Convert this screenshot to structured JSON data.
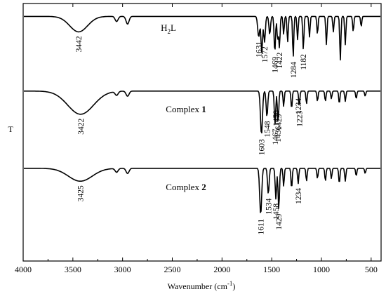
{
  "chart_data": {
    "type": "line",
    "title": "",
    "xlabel": "Wavenumber (cm",
    "xlabel_sup": "-1",
    "xlabel_close": ")",
    "ylabel": "T",
    "xlim": [
      4000,
      400
    ],
    "x_reversed": true,
    "x_ticks": [
      4000,
      3500,
      3000,
      2500,
      2000,
      1500,
      1000,
      500
    ],
    "grid": false,
    "series": [
      {
        "name": "H2L",
        "name_parts": [
          "H",
          "2",
          "L"
        ],
        "baseline": 0.05,
        "features": [
          {
            "x": 3442,
            "depth": 0.06,
            "width": 90
          },
          {
            "x": 3060,
            "depth": 0.02,
            "width": 15
          },
          {
            "x": 2950,
            "depth": 0.03,
            "width": 15
          },
          {
            "x": 1631,
            "depth": 0.08,
            "width": 10
          },
          {
            "x": 1600,
            "depth": 0.14,
            "width": 8
          },
          {
            "x": 1572,
            "depth": 0.1,
            "width": 8
          },
          {
            "x": 1520,
            "depth": 0.07,
            "width": 8
          },
          {
            "x": 1469,
            "depth": 0.14,
            "width": 7
          },
          {
            "x": 1440,
            "depth": 0.09,
            "width": 7
          },
          {
            "x": 1422,
            "depth": 0.12,
            "width": 6
          },
          {
            "x": 1380,
            "depth": 0.07,
            "width": 6
          },
          {
            "x": 1340,
            "depth": 0.1,
            "width": 6
          },
          {
            "x": 1284,
            "depth": 0.16,
            "width": 6
          },
          {
            "x": 1240,
            "depth": 0.09,
            "width": 6
          },
          {
            "x": 1182,
            "depth": 0.13,
            "width": 6
          },
          {
            "x": 1120,
            "depth": 0.08,
            "width": 6
          },
          {
            "x": 1040,
            "depth": 0.07,
            "width": 6
          },
          {
            "x": 950,
            "depth": 0.11,
            "width": 6
          },
          {
            "x": 880,
            "depth": 0.06,
            "width": 6
          },
          {
            "x": 810,
            "depth": 0.17,
            "width": 6
          },
          {
            "x": 760,
            "depth": 0.11,
            "width": 6
          },
          {
            "x": 680,
            "depth": 0.06,
            "width": 6
          },
          {
            "x": 600,
            "depth": 0.04,
            "width": 6
          }
        ],
        "annotations": [
          {
            "x": 3442,
            "label": "3442"
          },
          {
            "x": 1631,
            "label": "1631"
          },
          {
            "x": 1572,
            "label": "1572"
          },
          {
            "x": 1469,
            "label": "1469"
          },
          {
            "x": 1422,
            "label": "1422"
          },
          {
            "x": 1284,
            "label": "1284"
          },
          {
            "x": 1182,
            "label": "1182"
          }
        ]
      },
      {
        "name": "Complex 1",
        "name_parts": [
          "Complex ",
          "1"
        ],
        "baseline": 0.34,
        "features": [
          {
            "x": 3422,
            "depth": 0.09,
            "width": 130
          },
          {
            "x": 3060,
            "depth": 0.015,
            "width": 15
          },
          {
            "x": 2950,
            "depth": 0.02,
            "width": 15
          },
          {
            "x": 1603,
            "depth": 0.17,
            "width": 10
          },
          {
            "x": 1548,
            "depth": 0.1,
            "width": 8
          },
          {
            "x": 1467,
            "depth": 0.13,
            "width": 7
          },
          {
            "x": 1436,
            "depth": 0.12,
            "width": 7
          },
          {
            "x": 1380,
            "depth": 0.06,
            "width": 6
          },
          {
            "x": 1300,
            "depth": 0.07,
            "width": 6
          },
          {
            "x": 1223,
            "depth": 0.06,
            "width": 6
          },
          {
            "x": 1150,
            "depth": 0.05,
            "width": 6
          },
          {
            "x": 1040,
            "depth": 0.04,
            "width": 6
          },
          {
            "x": 960,
            "depth": 0.04,
            "width": 6
          },
          {
            "x": 900,
            "depth": 0.03,
            "width": 6
          },
          {
            "x": 820,
            "depth": 0.05,
            "width": 6
          },
          {
            "x": 760,
            "depth": 0.04,
            "width": 6
          },
          {
            "x": 650,
            "depth": 0.03,
            "width": 6
          },
          {
            "x": 560,
            "depth": 0.02,
            "width": 6
          }
        ],
        "annotations": [
          {
            "x": 3422,
            "label": "3422"
          },
          {
            "x": 1603,
            "label": "1603"
          },
          {
            "x": 1548,
            "label": "1548"
          },
          {
            "x": 1467,
            "label": "1467"
          },
          {
            "x": 1436,
            "label": "1436"
          },
          {
            "x": 1223,
            "label": "1223"
          },
          {
            "x": 1458,
            "label": "1458"
          },
          {
            "x": 1429,
            "label": "1429"
          },
          {
            "x": 1234,
            "label": "1234"
          }
        ]
      },
      {
        "name": "Complex 2",
        "name_parts": [
          "Complex ",
          "2"
        ],
        "baseline": 0.64,
        "features": [
          {
            "x": 3425,
            "depth": 0.05,
            "width": 120
          },
          {
            "x": 3060,
            "depth": 0.015,
            "width": 15
          },
          {
            "x": 2950,
            "depth": 0.02,
            "width": 15
          },
          {
            "x": 1611,
            "depth": 0.18,
            "width": 10
          },
          {
            "x": 1534,
            "depth": 0.1,
            "width": 8
          },
          {
            "x": 1458,
            "depth": 0.12,
            "width": 7
          },
          {
            "x": 1429,
            "depth": 0.16,
            "width": 7
          },
          {
            "x": 1380,
            "depth": 0.07,
            "width": 6
          },
          {
            "x": 1300,
            "depth": 0.08,
            "width": 6
          },
          {
            "x": 1234,
            "depth": 0.06,
            "width": 6
          },
          {
            "x": 1150,
            "depth": 0.05,
            "width": 6
          },
          {
            "x": 1040,
            "depth": 0.04,
            "width": 6
          },
          {
            "x": 960,
            "depth": 0.05,
            "width": 6
          },
          {
            "x": 900,
            "depth": 0.04,
            "width": 6
          },
          {
            "x": 820,
            "depth": 0.06,
            "width": 6
          },
          {
            "x": 760,
            "depth": 0.05,
            "width": 6
          },
          {
            "x": 650,
            "depth": 0.03,
            "width": 6
          },
          {
            "x": 560,
            "depth": 0.02,
            "width": 6
          }
        ],
        "annotations": [
          {
            "x": 3425,
            "label": "3425"
          },
          {
            "x": 1611,
            "label": "1611"
          },
          {
            "x": 1534,
            "label": "1534"
          },
          {
            "x": 1458,
            "label": "1458"
          },
          {
            "x": 1429,
            "label": "1429"
          },
          {
            "x": 1234,
            "label": "1234"
          }
        ]
      }
    ]
  }
}
